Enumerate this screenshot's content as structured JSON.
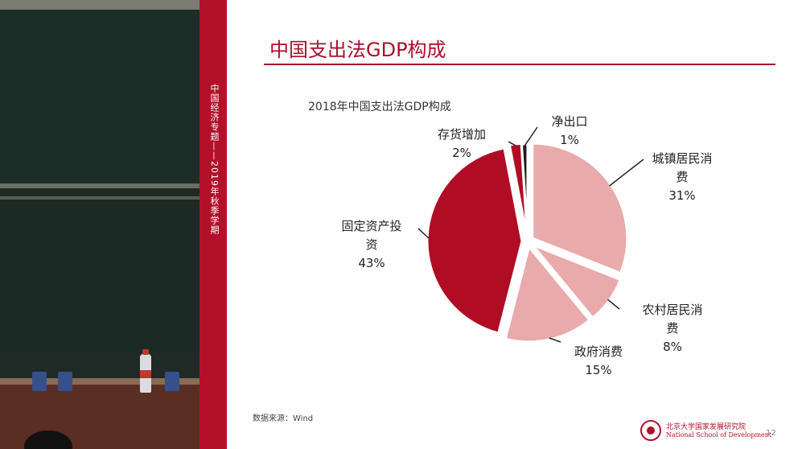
{
  "slide": {
    "side_text": "中国经济专题——2019年秋季学期",
    "title": "中国支出法GDP构成",
    "source": "数据来源：Wind",
    "logo_cn": "北京大学国家发展研究院",
    "logo_en": "National School of Development",
    "page_number": "12"
  },
  "chart_data": {
    "type": "pie",
    "title": "2018年中国支出法GDP构成",
    "slices": [
      {
        "label": "城镇居民消费",
        "label_lines": [
          "城镇居民消",
          "费"
        ],
        "pct_label": "31%",
        "value": 31,
        "color": "#e8aaab"
      },
      {
        "label": "农村居民消费",
        "label_lines": [
          "农村居民消",
          "费"
        ],
        "pct_label": "8%",
        "value": 8,
        "color": "#e8aaab"
      },
      {
        "label": "政府消费",
        "label_lines": [
          "政府消费"
        ],
        "pct_label": "15%",
        "value": 15,
        "color": "#e8aaab"
      },
      {
        "label": "固定资产投资",
        "label_lines": [
          "固定资产投",
          "资"
        ],
        "pct_label": "43%",
        "value": 43,
        "color": "#b00d24"
      },
      {
        "label": "存货增加",
        "label_lines": [
          "存货增加"
        ],
        "pct_label": "2%",
        "value": 2,
        "color": "#b00d24"
      },
      {
        "label": "净出口",
        "label_lines": [
          "净出口"
        ],
        "pct_label": "1%",
        "value": 1,
        "color": "#1a1a1a"
      }
    ],
    "legend": "none"
  }
}
